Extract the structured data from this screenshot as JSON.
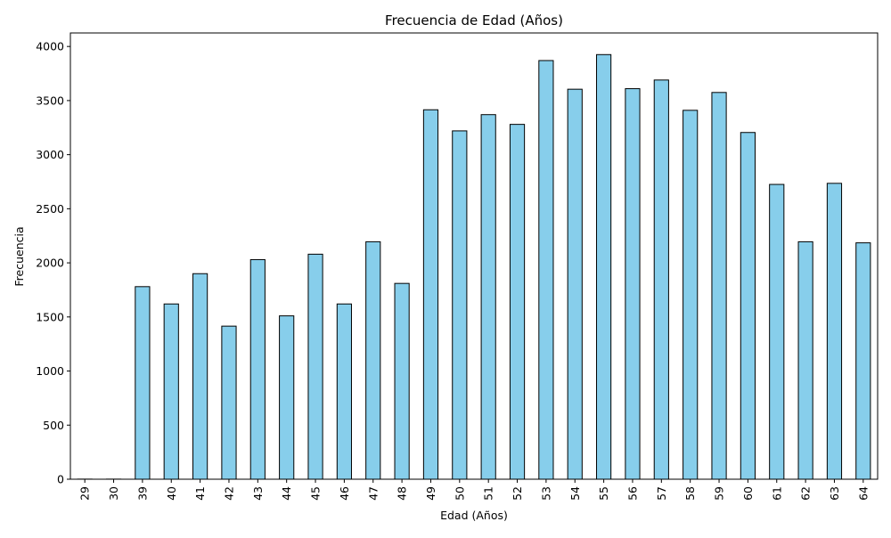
{
  "chart_data": {
    "type": "bar",
    "title": "Frecuencia de Edad (Años)",
    "xlabel": "Edad (Años)",
    "ylabel": "Frecuencia",
    "categories": [
      "29",
      "30",
      "39",
      "40",
      "41",
      "42",
      "43",
      "44",
      "45",
      "46",
      "47",
      "48",
      "49",
      "50",
      "51",
      "52",
      "53",
      "54",
      "55",
      "56",
      "57",
      "58",
      "59",
      "60",
      "61",
      "62",
      "63",
      "64"
    ],
    "values": [
      1,
      1,
      1780,
      1620,
      1900,
      1415,
      2030,
      1510,
      2080,
      1620,
      2195,
      1810,
      3415,
      3220,
      3370,
      3280,
      3870,
      3605,
      3925,
      3610,
      3690,
      3410,
      3575,
      3205,
      2725,
      2195,
      2735,
      2185
    ],
    "yticks": [
      0,
      500,
      1000,
      1500,
      2000,
      2500,
      3000,
      3500,
      4000
    ],
    "ylim": [
      0,
      4125
    ],
    "grid": false,
    "colors": {
      "bar_fill": "#87ceeb",
      "bar_edge": "#000000"
    }
  }
}
